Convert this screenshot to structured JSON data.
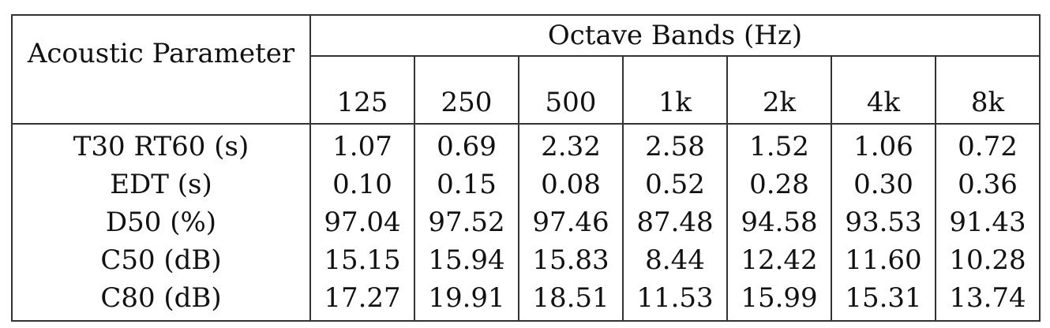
{
  "table": {
    "param_header": "Acoustic Parameter",
    "group_header": "Octave Bands (Hz)",
    "bands": [
      "125",
      "250",
      "500",
      "1k",
      "2k",
      "4k",
      "8k"
    ],
    "rows": [
      {
        "label": "T30 RT60 (s)",
        "values": [
          "1.07",
          "0.69",
          "2.32",
          "2.58",
          "1.52",
          "1.06",
          "0.72"
        ]
      },
      {
        "label": "EDT (s)",
        "values": [
          "0.10",
          "0.15",
          "0.08",
          "0.52",
          "0.28",
          "0.30",
          "0.36"
        ]
      },
      {
        "label": "D50 (%)",
        "values": [
          "97.04",
          "97.52",
          "97.46",
          "87.48",
          "94.58",
          "93.53",
          "91.43"
        ]
      },
      {
        "label": "C50 (dB)",
        "values": [
          "15.15",
          "15.94",
          "15.83",
          "8.44",
          "12.42",
          "11.60",
          "10.28"
        ]
      },
      {
        "label": "C80 (dB)",
        "values": [
          "17.27",
          "19.91",
          "18.51",
          "11.53",
          "15.99",
          "15.31",
          "13.74"
        ]
      }
    ]
  }
}
